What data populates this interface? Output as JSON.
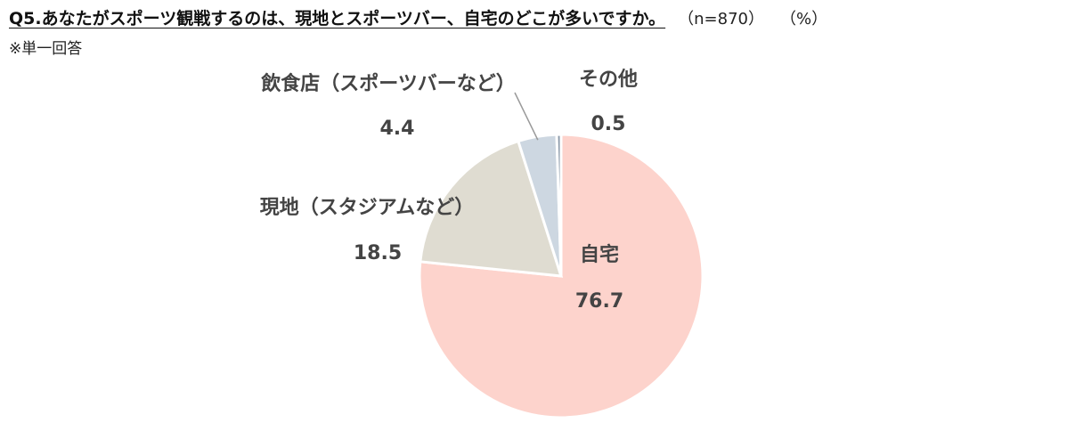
{
  "header": {
    "title": "Q5.あなたがスポーツ観戦するのは、現地とスポーツバー、自宅のどこが多いですか。",
    "sample": "（n=870）",
    "unit": "（%）",
    "note": "※単一回答"
  },
  "colors": {
    "slice_home": "#fdd3cc",
    "slice_stadium": "#dfdcd1",
    "slice_bar": "#cdd7e1",
    "slice_other": "#8a98a8",
    "leader_line": "#999999",
    "label_text": "#444444"
  },
  "chart_data": {
    "type": "pie",
    "title": "Q5.あなたがスポーツ観戦するのは、現地とスポーツバー、自宅のどこが多いですか。",
    "unit": "%",
    "start_angle_deg": 0,
    "direction": "clockwise",
    "slices": [
      {
        "label": "自宅",
        "value": 76.7,
        "value_label": "76.7",
        "color": "#fdd3cc",
        "label_position": "inside"
      },
      {
        "label": "現地（スタジアムなど）",
        "value": 18.5,
        "value_label": "18.5",
        "color": "#dfdcd1",
        "label_position": "outside-left"
      },
      {
        "label": "飲食店（スポーツバーなど）",
        "value": 4.4,
        "value_label": "4.4",
        "color": "#cdd7e1",
        "label_position": "outside-top-left"
      },
      {
        "label": "その他",
        "value": 0.5,
        "value_label": "0.5",
        "color": "#8a98a8",
        "label_position": "outside-top-right"
      }
    ]
  }
}
